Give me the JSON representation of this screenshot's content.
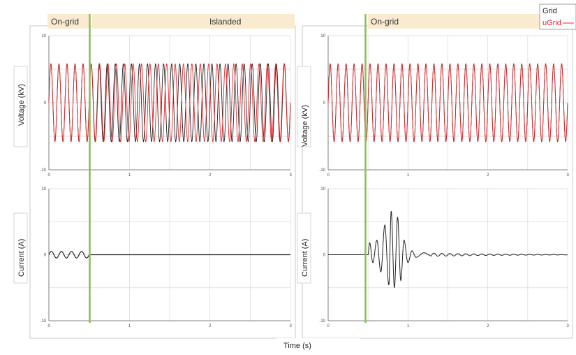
{
  "colors": {
    "grid_line": "#222222",
    "ugrid_line": "#e8262c",
    "current_line": "#222222",
    "transition_marker": "#8fbe5a",
    "mode_band": "#faebd0",
    "gridlines": "#d9d9d9"
  },
  "legend": {
    "grid_label": "Grid",
    "ugrid_label": "uGrid",
    "placement": "top-right"
  },
  "xlabel": "Time (s)",
  "chart_data": [
    {
      "type": "line",
      "panel": "left-voltage",
      "ylabel": "Voltage (kV)",
      "xlim": [
        0,
        3
      ],
      "ylim": [
        -10,
        10
      ],
      "x_ticks": [
        "0",
        "1",
        "2",
        "3"
      ],
      "y_ticks": [
        "10",
        "0",
        "-10"
      ],
      "grid": true,
      "mode_bands": [
        {
          "label": "On-grid",
          "x_start": 0,
          "x_end": 0.5
        },
        {
          "label": "Islanded",
          "x_start": 0.5,
          "x_end": 3
        }
      ],
      "transition_time": 0.5,
      "series": [
        {
          "name": "Grid",
          "frequency_hz": 10,
          "amplitude_kv": 5.8,
          "x_start": 0,
          "x_end": 3
        },
        {
          "name": "uGrid",
          "frequency_hz": 9.6,
          "amplitude_kv": 5.8,
          "x_start": 0,
          "x_end": 3,
          "in_phase_until": 0.5
        }
      ]
    },
    {
      "type": "line",
      "panel": "left-current",
      "ylabel": "Current (A)",
      "xlim": [
        0,
        3
      ],
      "ylim": [
        -10,
        10
      ],
      "x_ticks": [
        "0",
        "1",
        "2",
        "3"
      ],
      "y_ticks": [
        "10",
        "0",
        "-10"
      ],
      "grid": true,
      "transition_time": 0.5,
      "series": [
        {
          "name": "Current",
          "oscillation_until": 0.5,
          "frequency_hz": 8,
          "amplitude_a": 0.5,
          "value_after": 0
        }
      ]
    },
    {
      "type": "line",
      "panel": "right-voltage",
      "ylabel": "Voltage (kV)",
      "xlim": [
        0,
        3
      ],
      "ylim": [
        -10,
        10
      ],
      "x_ticks": [
        "0",
        "1",
        "2",
        "3"
      ],
      "y_ticks": [
        "10",
        "0",
        "-10"
      ],
      "grid": true,
      "mode_bands": [
        {
          "label": "On-grid",
          "x_start": 0.5,
          "x_end": 3
        }
      ],
      "transition_time": 0.5,
      "series": [
        {
          "name": "Grid",
          "frequency_hz": 10,
          "amplitude_kv": 5.8,
          "x_start": 0,
          "x_end": 3
        },
        {
          "name": "uGrid",
          "frequency_hz": 10,
          "amplitude_kv": 5.8,
          "x_start": 0,
          "x_end": 3
        }
      ]
    },
    {
      "type": "line",
      "panel": "right-current",
      "ylabel": "Current (A)",
      "xlim": [
        0,
        3
      ],
      "ylim": [
        -10,
        10
      ],
      "x_ticks": [
        "0",
        "1",
        "2",
        "3"
      ],
      "y_ticks": [
        "10",
        "0",
        "-10"
      ],
      "grid": true,
      "transition_time": 0.5,
      "series": [
        {
          "name": "Current",
          "value_before": 0,
          "burst_points": [
            [
              0.5,
              0
            ],
            [
              0.52,
              1.8
            ],
            [
              0.56,
              -1.2
            ],
            [
              0.61,
              2.2
            ],
            [
              0.66,
              -2.6
            ],
            [
              0.71,
              4.5
            ],
            [
              0.76,
              -4.6
            ],
            [
              0.79,
              6.6
            ],
            [
              0.83,
              -5.0
            ],
            [
              0.87,
              5.7
            ],
            [
              0.91,
              -3.9
            ],
            [
              0.95,
              2.2
            ],
            [
              1.0,
              -1.2
            ],
            [
              1.05,
              0.6
            ],
            [
              1.1,
              -0.4
            ],
            [
              1.2,
              0.3
            ],
            [
              1.3,
              -0.2
            ],
            [
              1.5,
              0.1
            ],
            [
              3.0,
              0.0
            ]
          ],
          "settling_frequency_hz": 10
        }
      ]
    }
  ]
}
